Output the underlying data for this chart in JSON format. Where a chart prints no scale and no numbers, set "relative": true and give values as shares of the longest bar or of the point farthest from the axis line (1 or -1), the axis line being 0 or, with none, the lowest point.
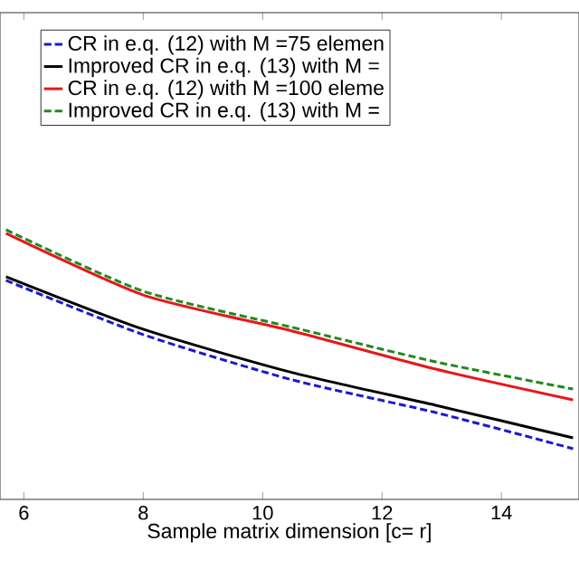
{
  "chart_data": {
    "type": "line",
    "relative": true,
    "xlabel": "Sample matrix dimension [c= r]",
    "x": [
      5.7,
      8,
      10.5,
      12.9,
      15.2
    ],
    "xlim": [
      5.6,
      15.3
    ],
    "xticks": [
      6,
      8,
      10,
      12,
      14
    ],
    "tick_labels": "x",
    "legend": "top",
    "series": [
      {
        "name": "CR in e.q. (12) with M =75 elemen",
        "color": "#1a1acc",
        "line_style": "dashed",
        "values": [
          0.812,
          0.611,
          0.443,
          0.322,
          0.188
        ]
      },
      {
        "name": "Improved CR in e.q. (13) with M =",
        "color": "#000000",
        "line_style": "solid",
        "values": [
          0.826,
          0.631,
          0.47,
          0.349,
          0.228
        ]
      },
      {
        "name": "CR in e.q. (12) with M =100 eleme",
        "color": "#e8161a",
        "line_style": "solid",
        "values": [
          0.987,
          0.758,
          0.624,
          0.483,
          0.369
        ]
      },
      {
        "name": "Improved CR in e.q. (13) with M =",
        "color": "#1f8a1f",
        "line_style": "dashed",
        "values": [
          1,
          0.772,
          0.638,
          0.51,
          0.409
        ]
      }
    ]
  }
}
